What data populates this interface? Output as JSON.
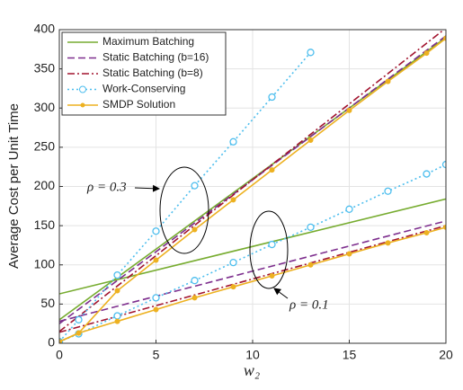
{
  "chart_data": {
    "type": "line",
    "xlabel": "w₂",
    "ylabel": "Average Cost per Unit Time",
    "xlim": [
      0,
      20
    ],
    "ylim": [
      0,
      400
    ],
    "xticks": [
      0,
      5,
      10,
      15,
      20
    ],
    "yticks": [
      0,
      50,
      100,
      150,
      200,
      250,
      300,
      350,
      400
    ],
    "grid": true,
    "legend": "top-left",
    "annotations": [
      "ρ = 0.3",
      "ρ = 0.1"
    ],
    "series": [
      {
        "name": "Maximum Batching",
        "color": "#77ac30",
        "dash": "solid",
        "marker": "none",
        "x": [
          0,
          20
        ],
        "rho_0_3": [
          30,
          390
        ],
        "rho_0_1": [
          63,
          184
        ]
      },
      {
        "name": "Static Batching (b=16)",
        "color": "#7e2f8e",
        "dash": "dashed",
        "marker": "none",
        "x": [
          0,
          20
        ],
        "rho_0_3": [
          25,
          392
        ],
        "rho_0_1": [
          28,
          156
        ]
      },
      {
        "name": "Static Batching (b=8)",
        "color": "#a2142f",
        "dash": "dashdot",
        "marker": "none",
        "x": [
          0,
          20
        ],
        "rho_0_3": [
          15,
          402
        ],
        "rho_0_1": [
          14,
          150
        ]
      },
      {
        "name": "Work-Conserving",
        "color": "#4dbeee",
        "dash": "dotted",
        "marker": "open-circle",
        "x": [
          0,
          1,
          3,
          5,
          7,
          9,
          11,
          13,
          15,
          17,
          19,
          20
        ],
        "rho_0_3": [
          2,
          30,
          87,
          143,
          201,
          257,
          314,
          371,
          null,
          null,
          null,
          null
        ],
        "rho_0_1": [
          2,
          12,
          35,
          58,
          80,
          103,
          126,
          148,
          171,
          194,
          216,
          228
        ]
      },
      {
        "name": "SMDP Solution",
        "color": "#edb120",
        "dash": "solid",
        "marker": "dot",
        "x": [
          0,
          1,
          3,
          5,
          7,
          9,
          11,
          13,
          15,
          17,
          19,
          20
        ],
        "rho_0_3": [
          2,
          13,
          67,
          106,
          145,
          183,
          221,
          259,
          297,
          334,
          370,
          389
        ],
        "rho_0_1": [
          2,
          13,
          28,
          43,
          58,
          72,
          86,
          100,
          114,
          128,
          141,
          148
        ]
      }
    ]
  }
}
